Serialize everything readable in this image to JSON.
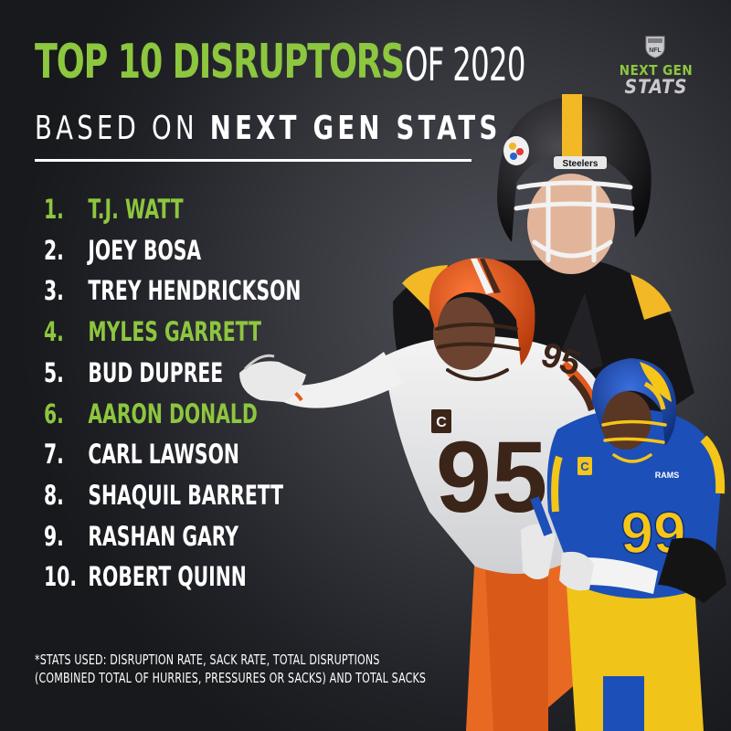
{
  "title": {
    "highlight": "TOP 10 DISRUPTORS",
    "rest": "OF 2020",
    "subtitle_light": "BASED ON",
    "subtitle_bold": "NEXT GEN STATS"
  },
  "logo": {
    "league": "NFL",
    "line1": "NEXT GEN",
    "line2": "STATS"
  },
  "rankings": [
    {
      "rank": "1.",
      "name": "T.J. WATT",
      "highlight": true
    },
    {
      "rank": "2.",
      "name": "JOEY BOSA",
      "highlight": false
    },
    {
      "rank": "3.",
      "name": "TREY HENDRICKSON",
      "highlight": false
    },
    {
      "rank": "4.",
      "name": "MYLES GARRETT",
      "highlight": true
    },
    {
      "rank": "5.",
      "name": "BUD DUPREE",
      "highlight": false
    },
    {
      "rank": "6.",
      "name": "AARON DONALD",
      "highlight": true
    },
    {
      "rank": "7.",
      "name": "CARL LAWSON",
      "highlight": false
    },
    {
      "rank": "8.",
      "name": "SHAQUIL BARRETT",
      "highlight": false
    },
    {
      "rank": "9.",
      "name": "RASHAN GARY",
      "highlight": false
    },
    {
      "rank": "10.",
      "name": "ROBERT QUINN",
      "highlight": false
    }
  ],
  "footnote": {
    "line1": "*STATS USED: DISRUPTION RATE, SACK RATE, TOTAL DISRUPTIONS",
    "line2": "(COMBINED TOTAL OF HURRIES, PRESSURES OR SACKS) AND TOTAL SACKS"
  },
  "players": {
    "steelers_decal": "Steelers",
    "browns_number": "95",
    "rams_number": "99",
    "captain_patch": "C",
    "rams_wordmark": "RAMS"
  },
  "colors": {
    "accent_green": "#8dc63f",
    "background": "#2a2b30",
    "steelers_gold": "#f2b825",
    "browns_orange": "#e35a1d",
    "browns_brown": "#4a2a1c",
    "rams_blue": "#1c4fb8",
    "rams_yellow": "#f5c518"
  }
}
